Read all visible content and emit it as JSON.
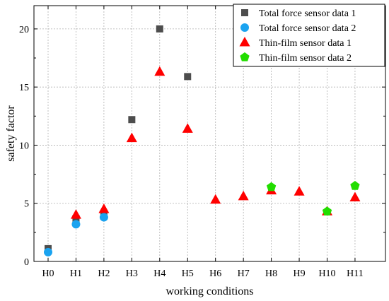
{
  "chart_data": {
    "type": "scatter",
    "xlabel": "working conditions",
    "ylabel": "safety factor",
    "categories": [
      "H0",
      "H1",
      "H2",
      "H3",
      "H4",
      "H5",
      "H6",
      "H7",
      "H8",
      "H9",
      "H10",
      "H11"
    ],
    "ylim": [
      0,
      22
    ],
    "yticks": [
      0,
      5,
      10,
      15,
      20
    ],
    "grid": true,
    "legend_position": "top-right",
    "series": [
      {
        "name": "Total force sensor data 1",
        "marker": "square",
        "color": "#4d4d4d",
        "points": [
          {
            "x": "H0",
            "y": 1.1
          },
          {
            "x": "H1",
            "y": 3.7
          },
          {
            "x": "H2",
            "y": 3.9
          },
          {
            "x": "H3",
            "y": 12.2
          },
          {
            "x": "H4",
            "y": 20.0
          },
          {
            "x": "H5",
            "y": 15.9
          }
        ]
      },
      {
        "name": "Total force sensor data 2",
        "marker": "circle",
        "color": "#1aa3f0",
        "points": [
          {
            "x": "H0",
            "y": 0.8
          },
          {
            "x": "H1",
            "y": 3.2
          },
          {
            "x": "H2",
            "y": 3.8
          }
        ]
      },
      {
        "name": "Thin-film sensor data 1",
        "marker": "triangle",
        "color": "#ff0000",
        "points": [
          {
            "x": "H1",
            "y": 4.0
          },
          {
            "x": "H2",
            "y": 4.5
          },
          {
            "x": "H3",
            "y": 10.6
          },
          {
            "x": "H4",
            "y": 16.3
          },
          {
            "x": "H5",
            "y": 11.4
          },
          {
            "x": "H6",
            "y": 5.3
          },
          {
            "x": "H7",
            "y": 5.6
          },
          {
            "x": "H8",
            "y": 6.1
          },
          {
            "x": "H9",
            "y": 6.0
          },
          {
            "x": "H10",
            "y": 4.3
          },
          {
            "x": "H11",
            "y": 5.5
          }
        ]
      },
      {
        "name": "Thin-film sensor data 2",
        "marker": "pentagon",
        "color": "#22dd00",
        "points": [
          {
            "x": "H8",
            "y": 6.4
          },
          {
            "x": "H10",
            "y": 4.3
          },
          {
            "x": "H11",
            "y": 6.5
          }
        ]
      }
    ]
  }
}
